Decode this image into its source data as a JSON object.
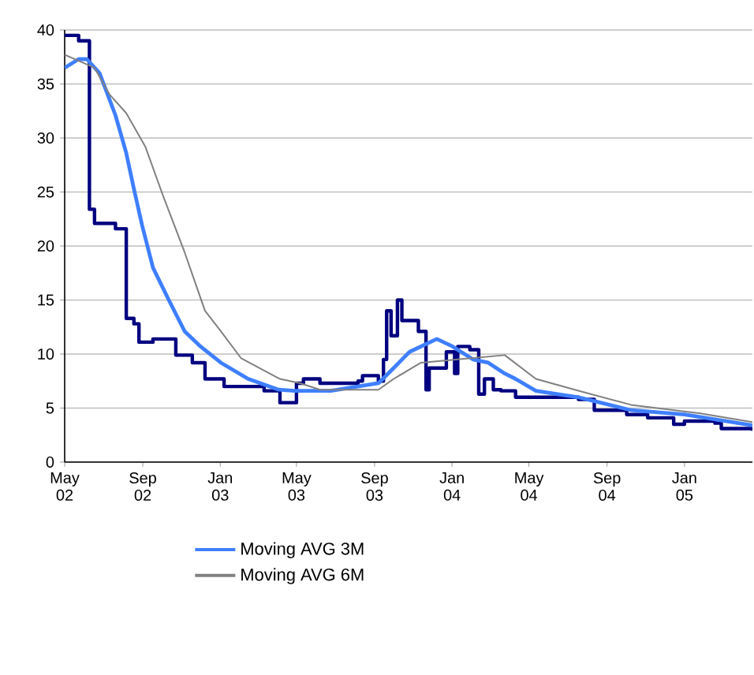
{
  "chart_data": {
    "type": "line",
    "xlim": [
      "2002-05-01",
      "2005-04-18"
    ],
    "xticks": [
      {
        "value": "2002-05-01",
        "label": "May 02"
      },
      {
        "value": "2002-09-01",
        "label": "Sep 02"
      },
      {
        "value": "2003-01-01",
        "label": "Jan 03"
      },
      {
        "value": "2003-05-01",
        "label": "May 03"
      },
      {
        "value": "2003-09-01",
        "label": "Sep 03"
      },
      {
        "value": "2004-01-01",
        "label": "Jan 04"
      },
      {
        "value": "2004-05-01",
        "label": "May 04"
      },
      {
        "value": "2004-09-01",
        "label": "Sep 04"
      },
      {
        "value": "2005-01-01",
        "label": "Jan 05"
      }
    ],
    "ylim": [
      0,
      40
    ],
    "yticks": [
      0,
      5,
      10,
      15,
      20,
      25,
      30,
      35,
      40
    ],
    "grid": "y",
    "legend": "bottom",
    "series": [
      {
        "type": "step",
        "color": "#000080",
        "x": [
          "2002-05-01",
          "2002-05-23",
          "2002-06-09",
          "2002-06-17",
          "2002-07-20",
          "2002-08-06",
          "2002-08-18",
          "2002-08-26",
          "2002-09-17",
          "2002-10-11",
          "2002-10-23",
          "2002-11-18",
          "2002-12-08",
          "2003-01-07",
          "2003-02-28",
          "2003-03-11",
          "2003-04-05",
          "2003-04-23",
          "2003-05-01",
          "2003-05-12",
          "2003-06-07",
          "2003-08-06",
          "2003-08-13",
          "2003-09-07",
          "2003-09-15",
          "2003-09-20",
          "2003-09-27",
          "2003-10-07",
          "2003-10-14",
          "2003-11-04",
          "2003-11-09",
          "2003-11-21",
          "2003-11-26",
          "2003-12-20",
          "2003-12-23",
          "2004-01-05",
          "2004-01-10",
          "2004-01-29",
          "2004-02-12",
          "2004-02-21",
          "2004-03-06",
          "2004-03-18",
          "2004-04-10",
          "2004-05-20",
          "2004-07-18",
          "2004-08-12",
          "2004-09-07",
          "2004-10-02",
          "2004-11-04",
          "2004-12-15",
          "2005-01-01",
          "2005-02-18",
          "2005-02-28",
          "2005-04-18"
        ],
        "values": [
          39.5,
          39.0,
          23.4,
          22.1,
          21.6,
          13.3,
          12.8,
          11.1,
          11.4,
          11.4,
          9.9,
          9.2,
          7.7,
          7.0,
          7.0,
          6.6,
          5.5,
          5.5,
          7.3,
          7.7,
          7.3,
          7.5,
          8.0,
          7.5,
          9.5,
          14.0,
          11.7,
          15.0,
          13.1,
          13.1,
          12.1,
          6.7,
          8.7,
          8.7,
          10.2,
          8.2,
          10.7,
          10.4,
          6.3,
          7.7,
          6.7,
          6.6,
          6.0,
          6.0,
          5.8,
          4.8,
          4.8,
          4.4,
          4.1,
          3.5,
          3.8,
          3.6,
          3.1,
          2.9
        ]
      },
      {
        "name": "Moving AVG 3M",
        "color": "#3f7fff",
        "x": [
          "2002-05-01",
          "2002-05-23",
          "2002-06-05",
          "2002-06-25",
          "2002-07-20",
          "2002-08-06",
          "2002-08-18",
          "2002-08-31",
          "2002-09-17",
          "2002-10-12",
          "2002-11-06",
          "2002-12-01",
          "2003-01-02",
          "2003-02-14",
          "2003-04-03",
          "2003-04-28",
          "2003-06-24",
          "2003-09-07",
          "2003-10-01",
          "2003-10-26",
          "2003-12-08",
          "2004-01-02",
          "2004-02-03",
          "2004-02-27",
          "2004-03-24",
          "2004-04-10",
          "2004-05-12",
          "2004-07-18",
          "2004-10-09",
          "2005-01-01",
          "2005-04-18"
        ],
        "values": [
          36.5,
          37.3,
          37.3,
          36.0,
          32.1,
          28.6,
          25.3,
          21.9,
          18.0,
          15.0,
          12.1,
          10.7,
          9.2,
          7.7,
          6.7,
          6.6,
          6.6,
          7.3,
          8.7,
          10.2,
          11.4,
          10.7,
          9.5,
          9.2,
          8.2,
          7.7,
          6.6,
          6.0,
          4.8,
          4.4,
          3.4
        ]
      },
      {
        "name": "Moving AVG 6M",
        "color": "#808080",
        "x": [
          "2002-05-01",
          "2002-06-17",
          "2002-07-11",
          "2002-08-06",
          "2002-09-05",
          "2002-10-02",
          "2002-11-06",
          "2002-12-08",
          "2003-01-02",
          "2003-02-03",
          "2003-04-05",
          "2003-05-07",
          "2003-06-07",
          "2003-09-07",
          "2003-10-01",
          "2003-11-13",
          "2004-01-10",
          "2004-03-24",
          "2004-05-12",
          "2004-07-18",
          "2004-10-09",
          "2005-01-26",
          "2005-04-18"
        ],
        "values": [
          37.7,
          36.5,
          34.0,
          32.3,
          29.2,
          24.8,
          19.4,
          14.0,
          12.1,
          9.6,
          7.7,
          7.3,
          6.7,
          6.7,
          7.7,
          9.2,
          9.5,
          9.9,
          7.7,
          6.6,
          5.3,
          4.5,
          3.7
        ]
      }
    ]
  }
}
